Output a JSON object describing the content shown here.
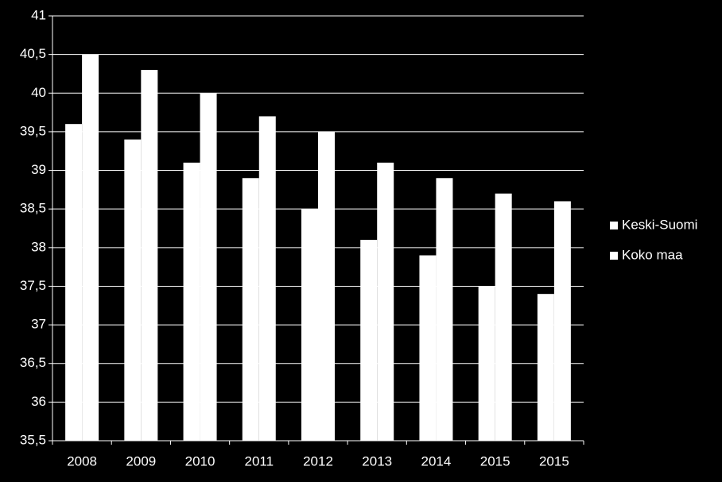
{
  "chart_data": {
    "type": "bar",
    "categories": [
      "2008",
      "2009",
      "2010",
      "2011",
      "2012",
      "2013",
      "2014",
      "2015",
      "2015"
    ],
    "series": [
      {
        "name": "Keski-Suomi",
        "color": "#ffffff",
        "values": [
          39.6,
          39.4,
          39.1,
          38.9,
          38.5,
          38.1,
          37.9,
          37.5,
          37.4
        ]
      },
      {
        "name": "Koko maa",
        "color": "#ffffff",
        "values": [
          40.5,
          40.3,
          40.0,
          39.7,
          39.5,
          39.1,
          38.9,
          38.7,
          38.6
        ]
      }
    ],
    "ylim": [
      35.5,
      41
    ],
    "yticks": [
      {
        "value": 35.5,
        "label": "35,5"
      },
      36,
      {
        "value": 36.5,
        "label": "36,5"
      },
      37,
      {
        "value": 37.5,
        "label": "37,5"
      },
      38,
      {
        "value": 38.5,
        "label": "38,5"
      },
      39,
      {
        "value": 39.5,
        "label": "39,5"
      },
      40,
      {
        "value": 40.5,
        "label": "40,5"
      },
      41
    ],
    "grid": true,
    "legend": "right"
  }
}
